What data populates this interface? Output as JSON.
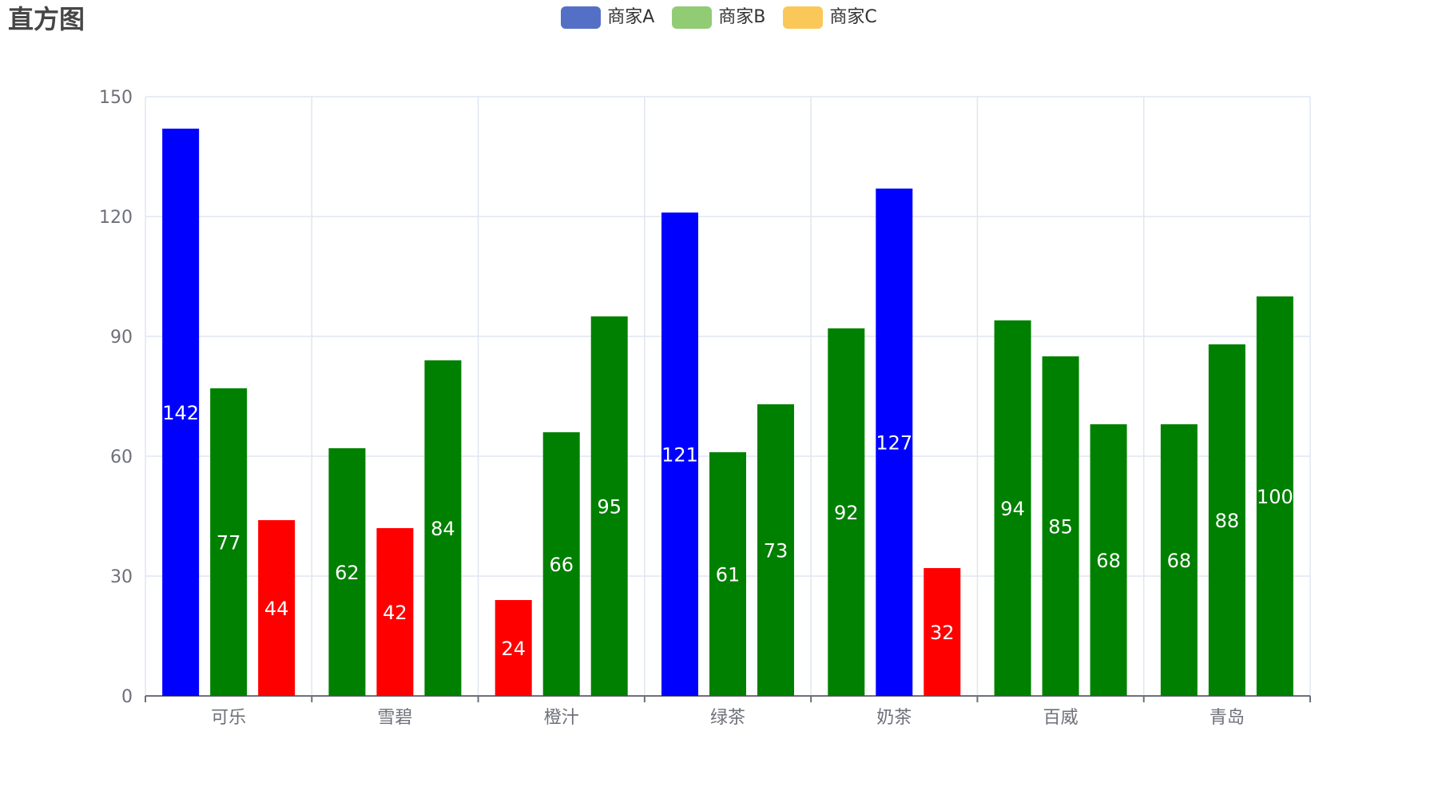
{
  "chart_data": {
    "type": "bar",
    "title": "直方图",
    "categories": [
      "可乐",
      "雪碧",
      "橙汁",
      "绿茶",
      "奶茶",
      "百威",
      "青岛"
    ],
    "ylim": [
      0,
      150
    ],
    "yticks": [
      0,
      30,
      60,
      90,
      120,
      150
    ],
    "grid": true,
    "legend_position": "top-center",
    "series": [
      {
        "name": "商家A",
        "color": "#5470c6",
        "values": [
          142,
          62,
          24,
          121,
          92,
          94,
          68
        ]
      },
      {
        "name": "商家B",
        "color": "#91cc75",
        "values": [
          77,
          42,
          66,
          61,
          127,
          85,
          88
        ]
      },
      {
        "name": "商家C",
        "color": "#fac858",
        "values": [
          44,
          84,
          95,
          73,
          32,
          68,
          100
        ]
      }
    ],
    "bar_colors_by_threshold": {
      "above_100": "#0000ff",
      "between_50_100": "#008000",
      "below_50": "#ff0000"
    }
  }
}
